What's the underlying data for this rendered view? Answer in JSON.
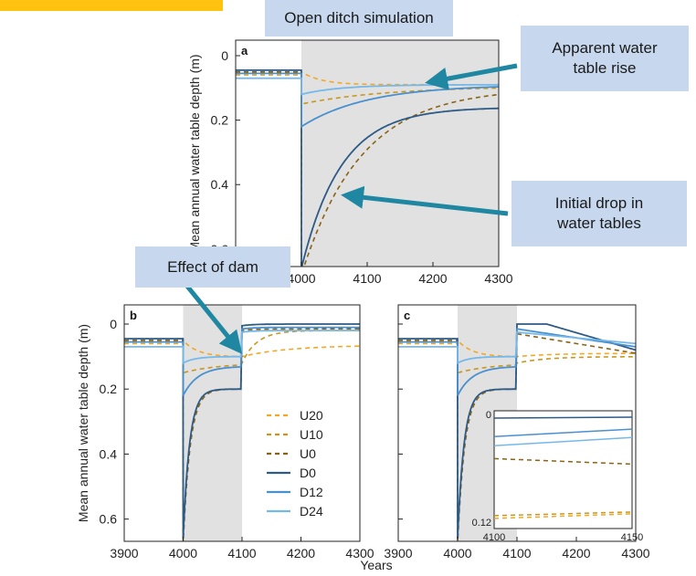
{
  "callouts": {
    "title": "Open ditch simulation",
    "rise": "Apparent water\ntable rise",
    "drop": "Initial drop in\nwater tables",
    "dam": "Effect of dam"
  },
  "colors": {
    "U20": "#f2a823",
    "U10": "#c8961d",
    "U0": "#8a6214",
    "D0": "#2e5a86",
    "D12": "#4a90cf",
    "D24": "#75b8ea",
    "shade": "#e1e1e1",
    "arrow": "#1f87a2",
    "callout_bg": "#c7d8ee",
    "banner": "#ffc20e"
  },
  "chart_data": [
    {
      "type": "line",
      "panel": "a",
      "ylabel": "Mean annual water table depth (m)",
      "xlabel": "",
      "xlim": [
        3900,
        4300
      ],
      "ylim": [
        0,
        0.7
      ],
      "y_inverted": true,
      "xticks": [
        "3900",
        "4000",
        "4100",
        "4200",
        "4300"
      ],
      "yticks": [
        "0",
        "0.2",
        "0.4",
        "0.6"
      ],
      "shaded_range": [
        4000,
        4300
      ],
      "series": [
        {
          "name": "U20",
          "style": "dashed",
          "before": 0.06,
          "min": 0.05,
          "final": 0.09,
          "tau": 30
        },
        {
          "name": "U10",
          "style": "dashed",
          "before": 0.055,
          "min": 0.15,
          "final": 0.095,
          "tau": 130
        },
        {
          "name": "U0",
          "style": "dashed",
          "before": 0.05,
          "min": 0.68,
          "final": 0.1,
          "tau": 90
        },
        {
          "name": "D0",
          "style": "solid",
          "before": 0.045,
          "min": 0.66,
          "final": 0.16,
          "tau": 60
        },
        {
          "name": "D12",
          "style": "solid",
          "before": 0.055,
          "min": 0.22,
          "final": 0.09,
          "tau": 100
        },
        {
          "name": "D24",
          "style": "solid",
          "before": 0.07,
          "min": 0.12,
          "final": 0.09,
          "tau": 80
        }
      ]
    },
    {
      "type": "line",
      "panel": "b",
      "ylabel": "Mean annual water table depth (m)",
      "xlabel": "",
      "xlim": [
        3900,
        4300
      ],
      "ylim": [
        0,
        0.7
      ],
      "y_inverted": true,
      "xticks": [
        "3900",
        "4000",
        "4100",
        "4200",
        "4300"
      ],
      "yticks": [
        "0",
        "0.2",
        "0.4",
        "0.6"
      ],
      "shaded_range": [
        4000,
        4100
      ],
      "legend": [
        "U20",
        "U10",
        "U0",
        "D0",
        "D12",
        "D24"
      ],
      "legend_position": "center",
      "series": [
        {
          "name": "U20",
          "style": "dashed",
          "before": 0.06,
          "min": 0.05,
          "at_dam": 0.1,
          "final": 0.065
        },
        {
          "name": "U10",
          "style": "dashed",
          "before": 0.055,
          "min": 0.15,
          "at_dam": 0.12,
          "final": 0.02
        },
        {
          "name": "U0",
          "style": "dashed",
          "before": 0.05,
          "min": 0.68,
          "at_dam": 0.2,
          "final": 0.015
        },
        {
          "name": "D0",
          "style": "solid",
          "before": 0.045,
          "min": 0.66,
          "at_dam": 0.2,
          "final": 0.0
        },
        {
          "name": "D12",
          "style": "solid",
          "before": 0.055,
          "min": 0.22,
          "at_dam": 0.13,
          "final": 0.01
        },
        {
          "name": "D24",
          "style": "solid",
          "before": 0.07,
          "min": 0.12,
          "at_dam": 0.1,
          "final": 0.02
        }
      ]
    },
    {
      "type": "line",
      "panel": "c",
      "xlabel": "Years",
      "xlim": [
        3900,
        4300
      ],
      "ylim": [
        0,
        0.7
      ],
      "y_inverted": true,
      "xticks": [
        "3900",
        "4000",
        "4100",
        "4200",
        "4300"
      ],
      "shaded_range": [
        4000,
        4100
      ],
      "series": [
        {
          "name": "U20",
          "style": "dashed",
          "before": 0.06,
          "min": 0.05,
          "at_dam": 0.1,
          "final": 0.09
        },
        {
          "name": "U10",
          "style": "dashed",
          "before": 0.055,
          "min": 0.15,
          "at_dam": 0.12,
          "final": 0.1
        },
        {
          "name": "U0",
          "style": "dashed",
          "before": 0.05,
          "min": 0.68,
          "at_dam": 0.2,
          "final": 0.09
        },
        {
          "name": "D0",
          "style": "solid",
          "before": 0.045,
          "min": 0.66,
          "at_dam": 0.2,
          "final": 0.08
        },
        {
          "name": "D12",
          "style": "solid",
          "before": 0.055,
          "min": 0.22,
          "at_dam": 0.13,
          "final": 0.07
        },
        {
          "name": "D24",
          "style": "solid",
          "before": 0.07,
          "min": 0.12,
          "at_dam": 0.1,
          "final": 0.06
        }
      ],
      "inset": {
        "xlim": [
          4100,
          4150
        ],
        "ylim": [
          0,
          0.12
        ],
        "xticks": [
          "4100",
          "4150"
        ],
        "yticks": [
          "0",
          "0.12"
        ],
        "series": [
          {
            "name": "U20",
            "style": "dashed",
            "start": 0.113,
            "end": 0.108
          },
          {
            "name": "U10",
            "style": "dashed",
            "start": 0.11,
            "end": 0.106
          },
          {
            "name": "U0",
            "style": "dashed",
            "start": 0.048,
            "end": 0.054
          },
          {
            "name": "D0",
            "style": "solid",
            "start": 0.004,
            "end": 0.003
          },
          {
            "name": "D12",
            "style": "solid",
            "start": 0.024,
            "end": 0.016
          },
          {
            "name": "D24",
            "style": "solid",
            "start": 0.034,
            "end": 0.025
          }
        ]
      }
    }
  ]
}
